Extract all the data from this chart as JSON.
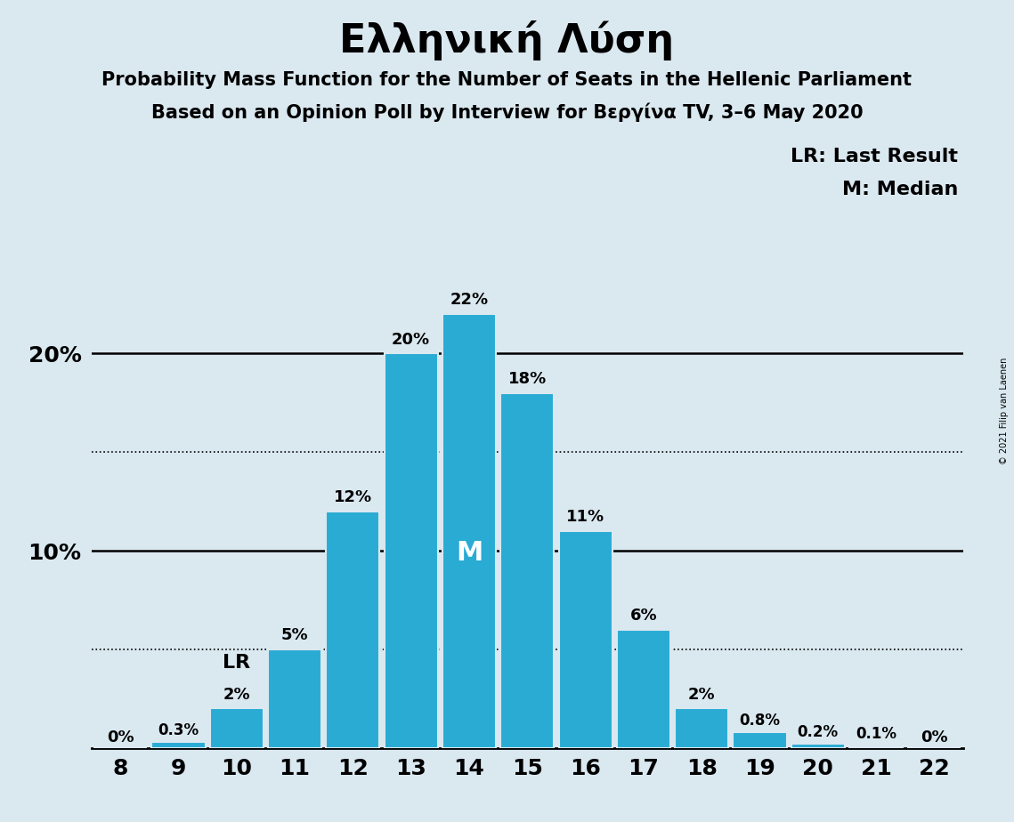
{
  "title": "Ελληνική Λύση",
  "subtitle1": "Probability Mass Function for the Number of Seats in the Hellenic Parliament",
  "subtitle2": "Based on an Opinion Poll by Interview for Βεργίνα TV, 3–6 May 2020",
  "copyright": "© 2021 Filip van Laenen",
  "seats": [
    8,
    9,
    10,
    11,
    12,
    13,
    14,
    15,
    16,
    17,
    18,
    19,
    20,
    21,
    22
  ],
  "probabilities": [
    0.0,
    0.3,
    2.0,
    5.0,
    12.0,
    20.0,
    22.0,
    18.0,
    11.0,
    6.0,
    2.0,
    0.8,
    0.2,
    0.1,
    0.0
  ],
  "bar_color": "#29ABD4",
  "background_color": "#DAE8F0",
  "bar_labels": [
    "0%",
    "0.3%",
    "2%",
    "5%",
    "12%",
    "20%",
    "22%",
    "18%",
    "11%",
    "6%",
    "2%",
    "0.8%",
    "0.2%",
    "0.1%",
    "0%"
  ],
  "median_seat": 14,
  "lr_seat": 10,
  "ylim": [
    0,
    25
  ],
  "solid_lines": [
    10.0,
    20.0
  ],
  "dotted_lines": [
    5.0,
    15.0
  ],
  "legend_lr": "LR: Last Result",
  "legend_m": "M: Median",
  "title_fontsize": 32,
  "subtitle_fontsize": 15,
  "bar_label_fontsize": 13,
  "axis_tick_fontsize": 18,
  "legend_fontsize": 16,
  "median_label_fontsize": 22,
  "lr_label_fontsize": 16,
  "ytick_positions": [
    10,
    20
  ],
  "ytick_labels": [
    "10%",
    "20%"
  ]
}
